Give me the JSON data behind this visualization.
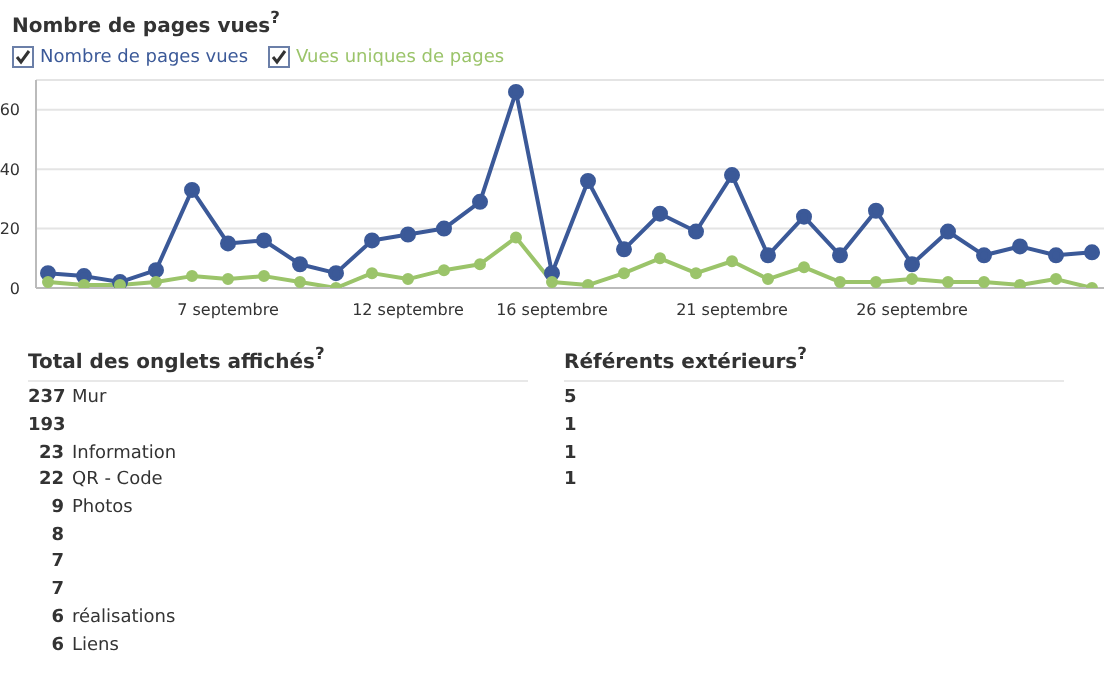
{
  "chart_data": [
    {
      "type": "line",
      "title": "Nombre de pages vues$^{?}$",
      "categories": [
        null,
        null,
        null,
        null,
        null,
        "7 septembre",
        null,
        null,
        null,
        null,
        "12 septembre",
        null,
        null,
        null,
        "16 septembre",
        null,
        null,
        null,
        null,
        "21 septembre",
        null,
        null,
        null,
        null,
        "26 septembre",
        null,
        null,
        null,
        null,
        null
      ],
      "series": [
        {
          "name": "Nombre de pages vues",
          "color": "#3b5998",
          "values": [
            5,
            4,
            2,
            6,
            33,
            15,
            16,
            8,
            5,
            16,
            18,
            20,
            29,
            66,
            5,
            36,
            13,
            25,
            19,
            38,
            11,
            24,
            11,
            26,
            8,
            19,
            11,
            14,
            11,
            12
          ]
        },
        {
          "name": "Vues uniques de pages",
          "color": "#9bc46a",
          "values": [
            2,
            1,
            1,
            2,
            4,
            3,
            4,
            2,
            0,
            5,
            3,
            6,
            8,
            17,
            2,
            1,
            5,
            10,
            5,
            9,
            3,
            7,
            2,
            2,
            3,
            2,
            2,
            1,
            3,
            0
          ]
        }
      ],
      "ylim": [
        0,
        70
      ],
      "yticks": [
        0,
        20,
        40,
        60
      ],
      "grid": "y",
      "legend": "top left",
      "marker": "circle"
    },
    {
      "type": "other",
      "title": "Total des onglets affichés$^{?}$",
      "categories": [
        "Mur",
        null,
        "Information",
        "QR - Code",
        "Photos",
        null,
        null,
        null,
        "réalisations",
        "Liens"
      ],
      "values": [
        237,
        193,
        23,
        22,
        9,
        8,
        7,
        7,
        6,
        6
      ],
      "data_labels": true
    },
    {
      "type": "other",
      "title": "Référents extérieurs$^{?}$",
      "categories": [
        null,
        null,
        null,
        null
      ],
      "values": [
        5,
        1,
        1,
        1
      ],
      "data_labels": true
    }
  ]
}
